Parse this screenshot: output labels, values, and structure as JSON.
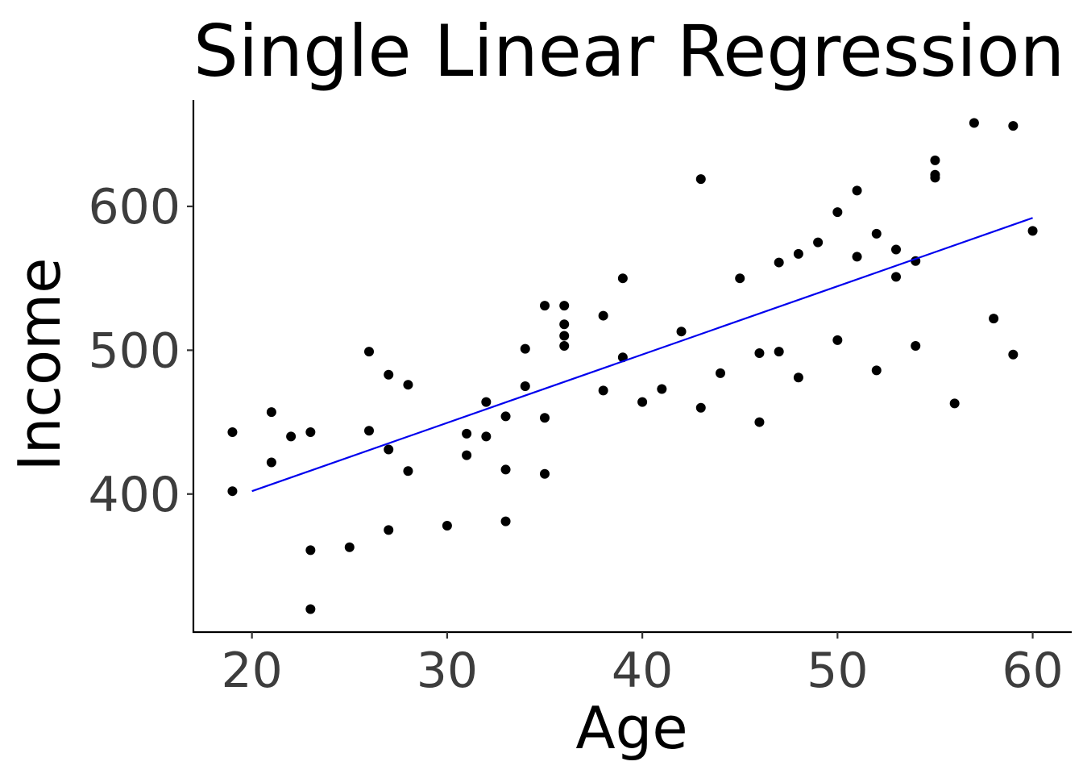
{
  "chart_data": {
    "type": "scatter",
    "title": "Single Linear Regression",
    "xlabel": "Age",
    "ylabel": "Income",
    "xlim": [
      17,
      62
    ],
    "ylim": [
      304,
      674
    ],
    "xticks": [
      20,
      30,
      40,
      50,
      60
    ],
    "yticks": [
      400,
      500,
      600
    ],
    "grid": false,
    "legend": "none",
    "colors": {
      "points": "#000000",
      "fit_line": "#0000ee",
      "axis": "#000000",
      "tick_label": "#3d3d3d"
    },
    "points": [
      {
        "x": 19,
        "y": 443
      },
      {
        "x": 19,
        "y": 402
      },
      {
        "x": 21,
        "y": 457
      },
      {
        "x": 21,
        "y": 422
      },
      {
        "x": 22,
        "y": 440
      },
      {
        "x": 23,
        "y": 443
      },
      {
        "x": 23,
        "y": 361
      },
      {
        "x": 23,
        "y": 320
      },
      {
        "x": 25,
        "y": 363
      },
      {
        "x": 26,
        "y": 499
      },
      {
        "x": 26,
        "y": 444
      },
      {
        "x": 27,
        "y": 483
      },
      {
        "x": 27,
        "y": 431
      },
      {
        "x": 27,
        "y": 375
      },
      {
        "x": 28,
        "y": 476
      },
      {
        "x": 28,
        "y": 416
      },
      {
        "x": 30,
        "y": 378
      },
      {
        "x": 31,
        "y": 442
      },
      {
        "x": 31,
        "y": 427
      },
      {
        "x": 32,
        "y": 464
      },
      {
        "x": 32,
        "y": 440
      },
      {
        "x": 33,
        "y": 454
      },
      {
        "x": 33,
        "y": 417
      },
      {
        "x": 33,
        "y": 381
      },
      {
        "x": 34,
        "y": 501
      },
      {
        "x": 34,
        "y": 475
      },
      {
        "x": 35,
        "y": 531
      },
      {
        "x": 35,
        "y": 453
      },
      {
        "x": 35,
        "y": 414
      },
      {
        "x": 36,
        "y": 531
      },
      {
        "x": 36,
        "y": 518
      },
      {
        "x": 36,
        "y": 510
      },
      {
        "x": 36,
        "y": 503
      },
      {
        "x": 38,
        "y": 524
      },
      {
        "x": 38,
        "y": 472
      },
      {
        "x": 39,
        "y": 550
      },
      {
        "x": 39,
        "y": 495
      },
      {
        "x": 40,
        "y": 464
      },
      {
        "x": 41,
        "y": 473
      },
      {
        "x": 42,
        "y": 513
      },
      {
        "x": 43,
        "y": 619
      },
      {
        "x": 43,
        "y": 460
      },
      {
        "x": 44,
        "y": 484
      },
      {
        "x": 45,
        "y": 550
      },
      {
        "x": 46,
        "y": 498
      },
      {
        "x": 46,
        "y": 450
      },
      {
        "x": 47,
        "y": 561
      },
      {
        "x": 47,
        "y": 499
      },
      {
        "x": 48,
        "y": 567
      },
      {
        "x": 48,
        "y": 481
      },
      {
        "x": 49,
        "y": 575
      },
      {
        "x": 50,
        "y": 596
      },
      {
        "x": 50,
        "y": 507
      },
      {
        "x": 51,
        "y": 611
      },
      {
        "x": 51,
        "y": 565
      },
      {
        "x": 52,
        "y": 581
      },
      {
        "x": 52,
        "y": 486
      },
      {
        "x": 53,
        "y": 570
      },
      {
        "x": 53,
        "y": 551
      },
      {
        "x": 54,
        "y": 562
      },
      {
        "x": 54,
        "y": 503
      },
      {
        "x": 55,
        "y": 632
      },
      {
        "x": 55,
        "y": 622
      },
      {
        "x": 55,
        "y": 620
      },
      {
        "x": 56,
        "y": 463
      },
      {
        "x": 57,
        "y": 658
      },
      {
        "x": 58,
        "y": 522
      },
      {
        "x": 59,
        "y": 656
      },
      {
        "x": 59,
        "y": 497
      },
      {
        "x": 60,
        "y": 583
      }
    ],
    "fit_line": {
      "x": [
        20,
        60
      ],
      "y": [
        402,
        592
      ]
    }
  }
}
